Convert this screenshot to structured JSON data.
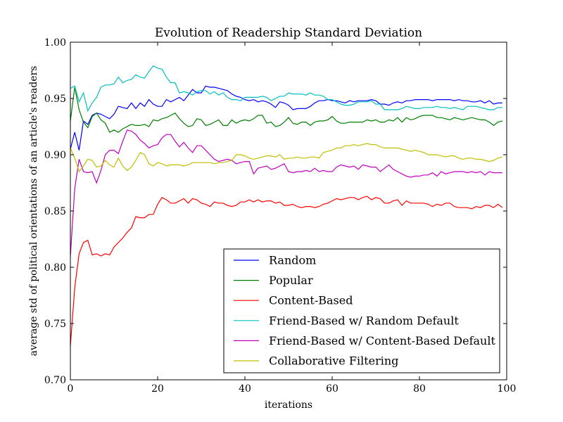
{
  "chart_data": {
    "type": "line",
    "title": "Evolution of Readership Standard Deviation",
    "xlabel": "iterations",
    "ylabel": "average std of political orientations of an article's readers",
    "xlim": [
      0,
      100
    ],
    "ylim": [
      0.7,
      1.0
    ],
    "xticks": [
      "0",
      "20",
      "40",
      "60",
      "80",
      "100"
    ],
    "yticks": [
      "0.70",
      "0.75",
      "0.80",
      "0.85",
      "0.90",
      "0.95",
      "1.00"
    ],
    "grid": false,
    "legend_position": "lower-right",
    "x": [
      0,
      1,
      2,
      3,
      4,
      5,
      6,
      7,
      8,
      9,
      10,
      11,
      12,
      13,
      14,
      15,
      16,
      17,
      18,
      19,
      20,
      21,
      22,
      23,
      24,
      25,
      26,
      27,
      28,
      29,
      30,
      31,
      32,
      33,
      34,
      35,
      36,
      37,
      38,
      39,
      40,
      41,
      42,
      43,
      44,
      45,
      46,
      47,
      48,
      49,
      50,
      51,
      52,
      53,
      54,
      55,
      56,
      57,
      58,
      59,
      60,
      61,
      62,
      63,
      64,
      65,
      66,
      67,
      68,
      69,
      70,
      71,
      72,
      73,
      74,
      75,
      76,
      77,
      78,
      79,
      80,
      81,
      82,
      83,
      84,
      85,
      86,
      87,
      88,
      89,
      90,
      91,
      92,
      93,
      94,
      95,
      96,
      97,
      98,
      99
    ],
    "series": [
      {
        "name": "Random",
        "color": "#0000ff",
        "values": [
          0.905,
          0.92,
          0.904,
          0.93,
          0.927,
          0.935,
          0.937,
          0.936,
          0.934,
          0.932,
          0.936,
          0.943,
          0.942,
          0.941,
          0.946,
          0.941,
          0.946,
          0.943,
          0.949,
          0.945,
          0.943,
          0.943,
          0.949,
          0.947,
          0.949,
          0.951,
          0.948,
          0.953,
          0.958,
          0.955,
          0.955,
          0.961,
          0.96,
          0.96,
          0.959,
          0.958,
          0.957,
          0.954,
          0.952,
          0.951,
          0.949,
          0.948,
          0.949,
          0.947,
          0.948,
          0.947,
          0.945,
          0.942,
          0.947,
          0.946,
          0.944,
          0.94,
          0.941,
          0.941,
          0.941,
          0.943,
          0.946,
          0.948,
          0.948,
          0.949,
          0.948,
          0.948,
          0.947,
          0.946,
          0.948,
          0.947,
          0.948,
          0.948,
          0.948,
          0.949,
          0.948,
          0.945,
          0.945,
          0.944,
          0.946,
          0.947,
          0.946,
          0.948,
          0.948,
          0.949,
          0.949,
          0.949,
          0.949,
          0.948,
          0.949,
          0.949,
          0.949,
          0.949,
          0.948,
          0.949,
          0.948,
          0.948,
          0.947,
          0.947,
          0.948,
          0.946,
          0.948,
          0.945,
          0.946,
          0.946
        ]
      },
      {
        "name": "Popular",
        "color": "#008000",
        "values": [
          0.93,
          0.96,
          0.94,
          0.929,
          0.924,
          0.934,
          0.937,
          0.931,
          0.928,
          0.92,
          0.922,
          0.92,
          0.923,
          0.925,
          0.927,
          0.926,
          0.926,
          0.927,
          0.925,
          0.931,
          0.93,
          0.932,
          0.933,
          0.935,
          0.937,
          0.932,
          0.928,
          0.925,
          0.926,
          0.932,
          0.931,
          0.926,
          0.927,
          0.929,
          0.931,
          0.926,
          0.926,
          0.931,
          0.928,
          0.93,
          0.931,
          0.93,
          0.932,
          0.935,
          0.935,
          0.928,
          0.929,
          0.925,
          0.926,
          0.929,
          0.933,
          0.928,
          0.927,
          0.929,
          0.929,
          0.926,
          0.929,
          0.93,
          0.93,
          0.931,
          0.934,
          0.93,
          0.928,
          0.928,
          0.929,
          0.929,
          0.929,
          0.929,
          0.931,
          0.93,
          0.931,
          0.929,
          0.929,
          0.931,
          0.93,
          0.933,
          0.929,
          0.933,
          0.931,
          0.932,
          0.934,
          0.935,
          0.935,
          0.935,
          0.933,
          0.933,
          0.932,
          0.931,
          0.933,
          0.932,
          0.931,
          0.932,
          0.933,
          0.932,
          0.931,
          0.931,
          0.929,
          0.926,
          0.929,
          0.93
        ]
      },
      {
        "name": "Content-Based",
        "color": "#ff0000",
        "values": [
          0.73,
          0.782,
          0.812,
          0.822,
          0.824,
          0.811,
          0.812,
          0.81,
          0.812,
          0.811,
          0.818,
          0.822,
          0.826,
          0.831,
          0.835,
          0.845,
          0.844,
          0.844,
          0.847,
          0.847,
          0.856,
          0.862,
          0.86,
          0.857,
          0.857,
          0.859,
          0.861,
          0.857,
          0.861,
          0.86,
          0.857,
          0.856,
          0.854,
          0.858,
          0.857,
          0.857,
          0.855,
          0.854,
          0.855,
          0.858,
          0.858,
          0.86,
          0.858,
          0.86,
          0.858,
          0.859,
          0.859,
          0.857,
          0.858,
          0.855,
          0.855,
          0.856,
          0.854,
          0.853,
          0.854,
          0.854,
          0.853,
          0.854,
          0.856,
          0.857,
          0.859,
          0.861,
          0.86,
          0.861,
          0.862,
          0.862,
          0.86,
          0.862,
          0.863,
          0.86,
          0.862,
          0.861,
          0.857,
          0.857,
          0.859,
          0.86,
          0.855,
          0.859,
          0.857,
          0.857,
          0.857,
          0.857,
          0.856,
          0.854,
          0.856,
          0.855,
          0.857,
          0.857,
          0.854,
          0.853,
          0.853,
          0.853,
          0.852,
          0.854,
          0.853,
          0.855,
          0.855,
          0.853,
          0.856,
          0.853
        ]
      },
      {
        "name": "Friend-Based w/ Random Default",
        "color": "#00bfbf",
        "values": [
          0.959,
          0.961,
          0.947,
          0.955,
          0.939,
          0.946,
          0.951,
          0.96,
          0.962,
          0.962,
          0.963,
          0.969,
          0.964,
          0.966,
          0.967,
          0.971,
          0.969,
          0.968,
          0.974,
          0.979,
          0.977,
          0.976,
          0.969,
          0.964,
          0.964,
          0.955,
          0.956,
          0.955,
          0.953,
          0.956,
          0.957,
          0.957,
          0.954,
          0.956,
          0.953,
          0.955,
          0.951,
          0.949,
          0.949,
          0.948,
          0.951,
          0.951,
          0.951,
          0.951,
          0.952,
          0.951,
          0.948,
          0.95,
          0.952,
          0.952,
          0.955,
          0.954,
          0.954,
          0.954,
          0.953,
          0.955,
          0.953,
          0.953,
          0.952,
          0.949,
          0.949,
          0.947,
          0.945,
          0.944,
          0.944,
          0.945,
          0.947,
          0.947,
          0.947,
          0.948,
          0.945,
          0.945,
          0.94,
          0.94,
          0.94,
          0.94,
          0.941,
          0.943,
          0.942,
          0.941,
          0.941,
          0.942,
          0.942,
          0.942,
          0.943,
          0.942,
          0.942,
          0.941,
          0.942,
          0.941,
          0.94,
          0.943,
          0.943,
          0.943,
          0.942,
          0.941,
          0.94,
          0.94,
          0.942,
          0.942
        ]
      },
      {
        "name": "Friend-Based w/ Content-Based Default",
        "color": "#bf00bf",
        "values": [
          0.81,
          0.87,
          0.896,
          0.885,
          0.884,
          0.885,
          0.875,
          0.886,
          0.9,
          0.904,
          0.904,
          0.901,
          0.912,
          0.922,
          0.921,
          0.918,
          0.913,
          0.91,
          0.906,
          0.908,
          0.909,
          0.915,
          0.918,
          0.918,
          0.912,
          0.907,
          0.911,
          0.906,
          0.902,
          0.908,
          0.908,
          0.904,
          0.9,
          0.896,
          0.894,
          0.895,
          0.896,
          0.895,
          0.892,
          0.893,
          0.894,
          0.894,
          0.883,
          0.888,
          0.889,
          0.89,
          0.887,
          0.888,
          0.89,
          0.892,
          0.885,
          0.884,
          0.885,
          0.885,
          0.886,
          0.885,
          0.888,
          0.885,
          0.886,
          0.885,
          0.885,
          0.889,
          0.891,
          0.89,
          0.889,
          0.89,
          0.887,
          0.891,
          0.89,
          0.889,
          0.889,
          0.885,
          0.888,
          0.891,
          0.887,
          0.885,
          0.883,
          0.881,
          0.88,
          0.881,
          0.881,
          0.882,
          0.882,
          0.884,
          0.881,
          0.885,
          0.883,
          0.884,
          0.885,
          0.885,
          0.885,
          0.884,
          0.885,
          0.884,
          0.885,
          0.882,
          0.885,
          0.884,
          0.884,
          0.884
        ]
      },
      {
        "name": "Collaborative Filtering",
        "color": "#bfbf00",
        "values": [
          0.906,
          0.897,
          0.885,
          0.89,
          0.896,
          0.895,
          0.889,
          0.89,
          0.895,
          0.891,
          0.889,
          0.897,
          0.89,
          0.886,
          0.889,
          0.895,
          0.902,
          0.9,
          0.892,
          0.89,
          0.893,
          0.892,
          0.89,
          0.891,
          0.891,
          0.891,
          0.89,
          0.891,
          0.893,
          0.893,
          0.893,
          0.893,
          0.893,
          0.892,
          0.893,
          0.893,
          0.894,
          0.895,
          0.9,
          0.9,
          0.899,
          0.897,
          0.896,
          0.897,
          0.898,
          0.899,
          0.899,
          0.898,
          0.9,
          0.896,
          0.897,
          0.897,
          0.898,
          0.897,
          0.897,
          0.898,
          0.898,
          0.897,
          0.902,
          0.903,
          0.904,
          0.906,
          0.906,
          0.908,
          0.908,
          0.909,
          0.908,
          0.909,
          0.91,
          0.909,
          0.909,
          0.907,
          0.906,
          0.906,
          0.906,
          0.906,
          0.905,
          0.904,
          0.903,
          0.904,
          0.903,
          0.902,
          0.9,
          0.9,
          0.9,
          0.899,
          0.898,
          0.899,
          0.899,
          0.897,
          0.896,
          0.897,
          0.897,
          0.896,
          0.896,
          0.895,
          0.894,
          0.895,
          0.897,
          0.898
        ]
      }
    ]
  }
}
